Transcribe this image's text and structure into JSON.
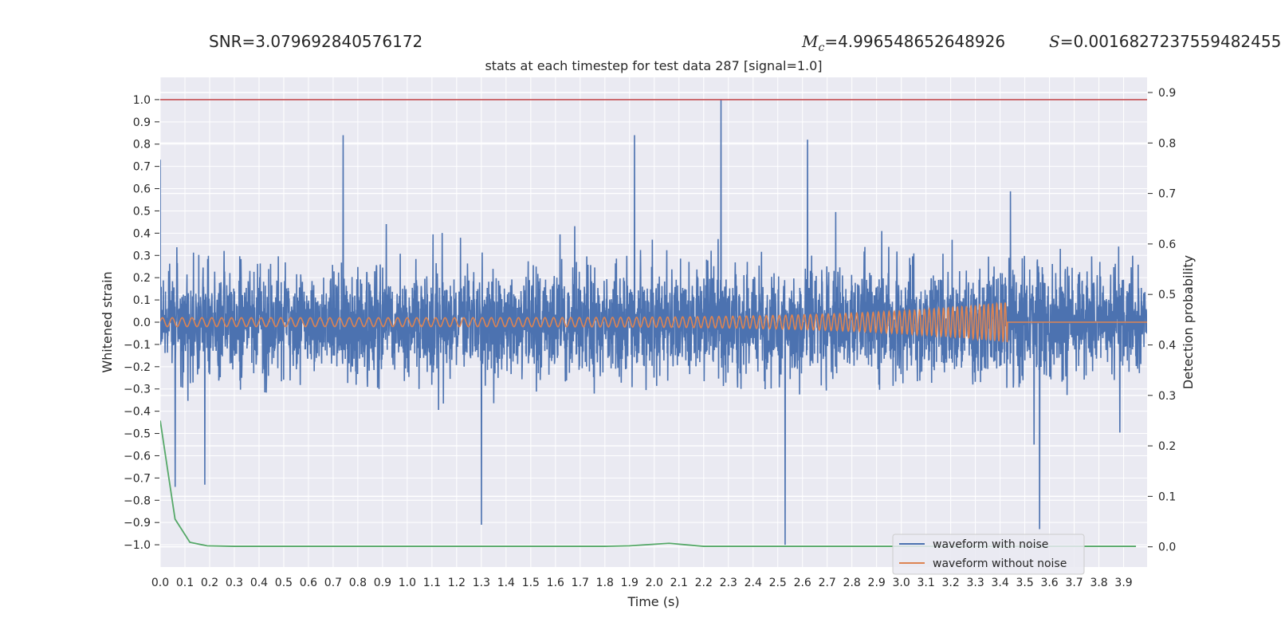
{
  "annotations": {
    "snr_text": "SNR=3.079692840576172",
    "mc_symbol": "M",
    "mc_subscript": "c",
    "mc_value": "=4.996548652648926",
    "s_symbol": "S",
    "s_value": "=0.0016827237559482455"
  },
  "chart_data": {
    "type": "line",
    "title": "stats at each timestep for test data 287 [signal=1.0]",
    "xlabel": "Time (s)",
    "ylabel_left": "Whitened strain",
    "ylabel_right": "Detection probability",
    "xlim": [
      0.0,
      3.995
    ],
    "ylim_left": [
      -1.1,
      1.1
    ],
    "ylim_right": [
      -0.04,
      0.93
    ],
    "x_ticks": [
      "0.0",
      "0.1",
      "0.2",
      "0.3",
      "0.4",
      "0.5",
      "0.6",
      "0.7",
      "0.8",
      "0.9",
      "1.0",
      "1.1",
      "1.2",
      "1.3",
      "1.4",
      "1.5",
      "1.6",
      "1.7",
      "1.8",
      "1.9",
      "2.0",
      "2.1",
      "2.2",
      "2.3",
      "2.4",
      "2.5",
      "2.6",
      "2.7",
      "2.8",
      "2.9",
      "3.0",
      "3.1",
      "3.2",
      "3.3",
      "3.4",
      "3.5",
      "3.6",
      "3.7",
      "3.8",
      "3.9"
    ],
    "y_ticks_left": [
      "-1.0",
      "-0.9",
      "-0.8",
      "-0.7",
      "-0.6",
      "-0.5",
      "-0.4",
      "-0.3",
      "-0.2",
      "-0.1",
      "0.0",
      "0.1",
      "0.2",
      "0.3",
      "0.4",
      "0.5",
      "0.6",
      "0.7",
      "0.8",
      "0.9",
      "1.0"
    ],
    "y_ticks_right": [
      "0.0",
      "0.1",
      "0.2",
      "0.3",
      "0.4",
      "0.5",
      "0.6",
      "0.7",
      "0.8",
      "0.9"
    ],
    "threshold": {
      "value": 1.0,
      "axis": "left"
    },
    "series": [
      {
        "name": "waveform with noise",
        "axis": "left",
        "style": "noise",
        "amplitude_typical": 0.3,
        "amplitude_peak": 1.0,
        "notable_peaks": [
          [
            0.0,
            0.73
          ],
          [
            0.74,
            0.84
          ],
          [
            1.92,
            0.84
          ],
          [
            2.27,
            1.0
          ],
          [
            2.62,
            0.82
          ],
          [
            2.53,
            -1.0
          ],
          [
            1.3,
            -0.91
          ],
          [
            3.56,
            -0.93
          ],
          [
            0.06,
            -0.74
          ],
          [
            0.18,
            -0.73
          ]
        ]
      },
      {
        "name": "waveform without noise",
        "axis": "left",
        "style": "chirp",
        "start_amplitude": 0.02,
        "end_amplitude": 0.09,
        "merger_time": 3.43,
        "start_freq": 25,
        "end_freq": 60
      },
      {
        "axis": "right",
        "x": [
          0.0,
          0.06,
          0.12,
          0.19,
          0.3,
          0.5,
          1.0,
          1.5,
          1.8,
          1.9,
          2.06,
          2.2,
          2.5,
          3.0,
          3.5,
          3.95
        ],
        "values": [
          0.25,
          0.055,
          0.009,
          0.002,
          0.001,
          0.001,
          0.001,
          0.001,
          0.001,
          0.002,
          0.007,
          0.001,
          0.001,
          0.001,
          0.001,
          0.001
        ]
      }
    ],
    "colors": {
      "noise": "#4c72b0",
      "clean": "#dd8452",
      "probability": "#55a868",
      "threshold": "#c44e52",
      "background": "#eaeaf2",
      "grid": "#ffffff"
    },
    "legend": {
      "placement": "lower-right",
      "entries": [
        "waveform with noise",
        "waveform without noise"
      ]
    },
    "grid": true
  }
}
